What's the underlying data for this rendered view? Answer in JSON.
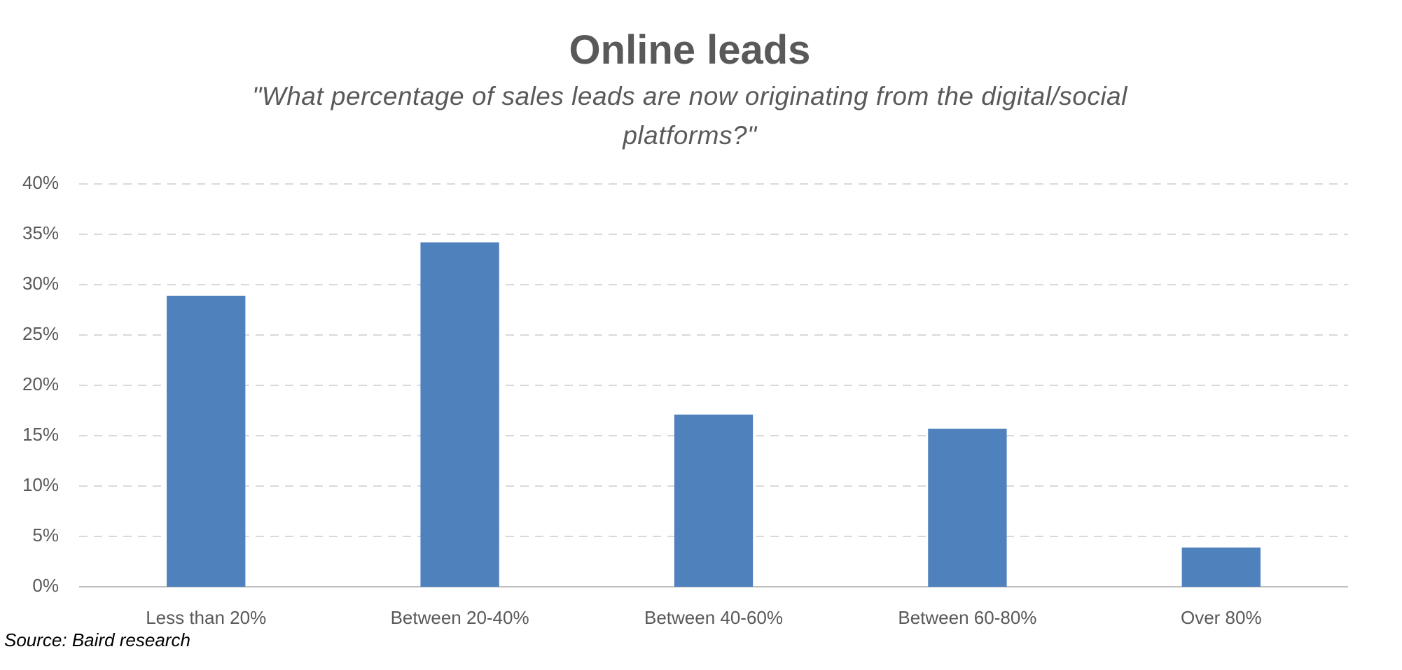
{
  "chart_data": {
    "type": "bar",
    "title": "Online leads",
    "subtitle": "\"What percentage of sales leads are now originating from the digital/social platforms?\"",
    "source": "Source: Baird research",
    "categories": [
      "Less than 20%",
      "Between 20-40%",
      "Between 40-60%",
      "Between 60-80%",
      "Over 80%"
    ],
    "values": [
      28.9,
      34.2,
      17.1,
      15.7,
      3.9
    ],
    "color": "#4f81bd",
    "ylim": [
      0,
      40
    ],
    "yticks": [
      {
        "value": 0,
        "label": "0%"
      },
      {
        "value": 5,
        "label": "5%"
      },
      {
        "value": 10,
        "label": "10%"
      },
      {
        "value": 15,
        "label": "15%"
      },
      {
        "value": 20,
        "label": "20%"
      },
      {
        "value": 25,
        "label": "25%"
      },
      {
        "value": 30,
        "label": "30%"
      },
      {
        "value": 35,
        "label": "35%"
      },
      {
        "value": 40,
        "label": "40%"
      }
    ],
    "grid": true
  }
}
